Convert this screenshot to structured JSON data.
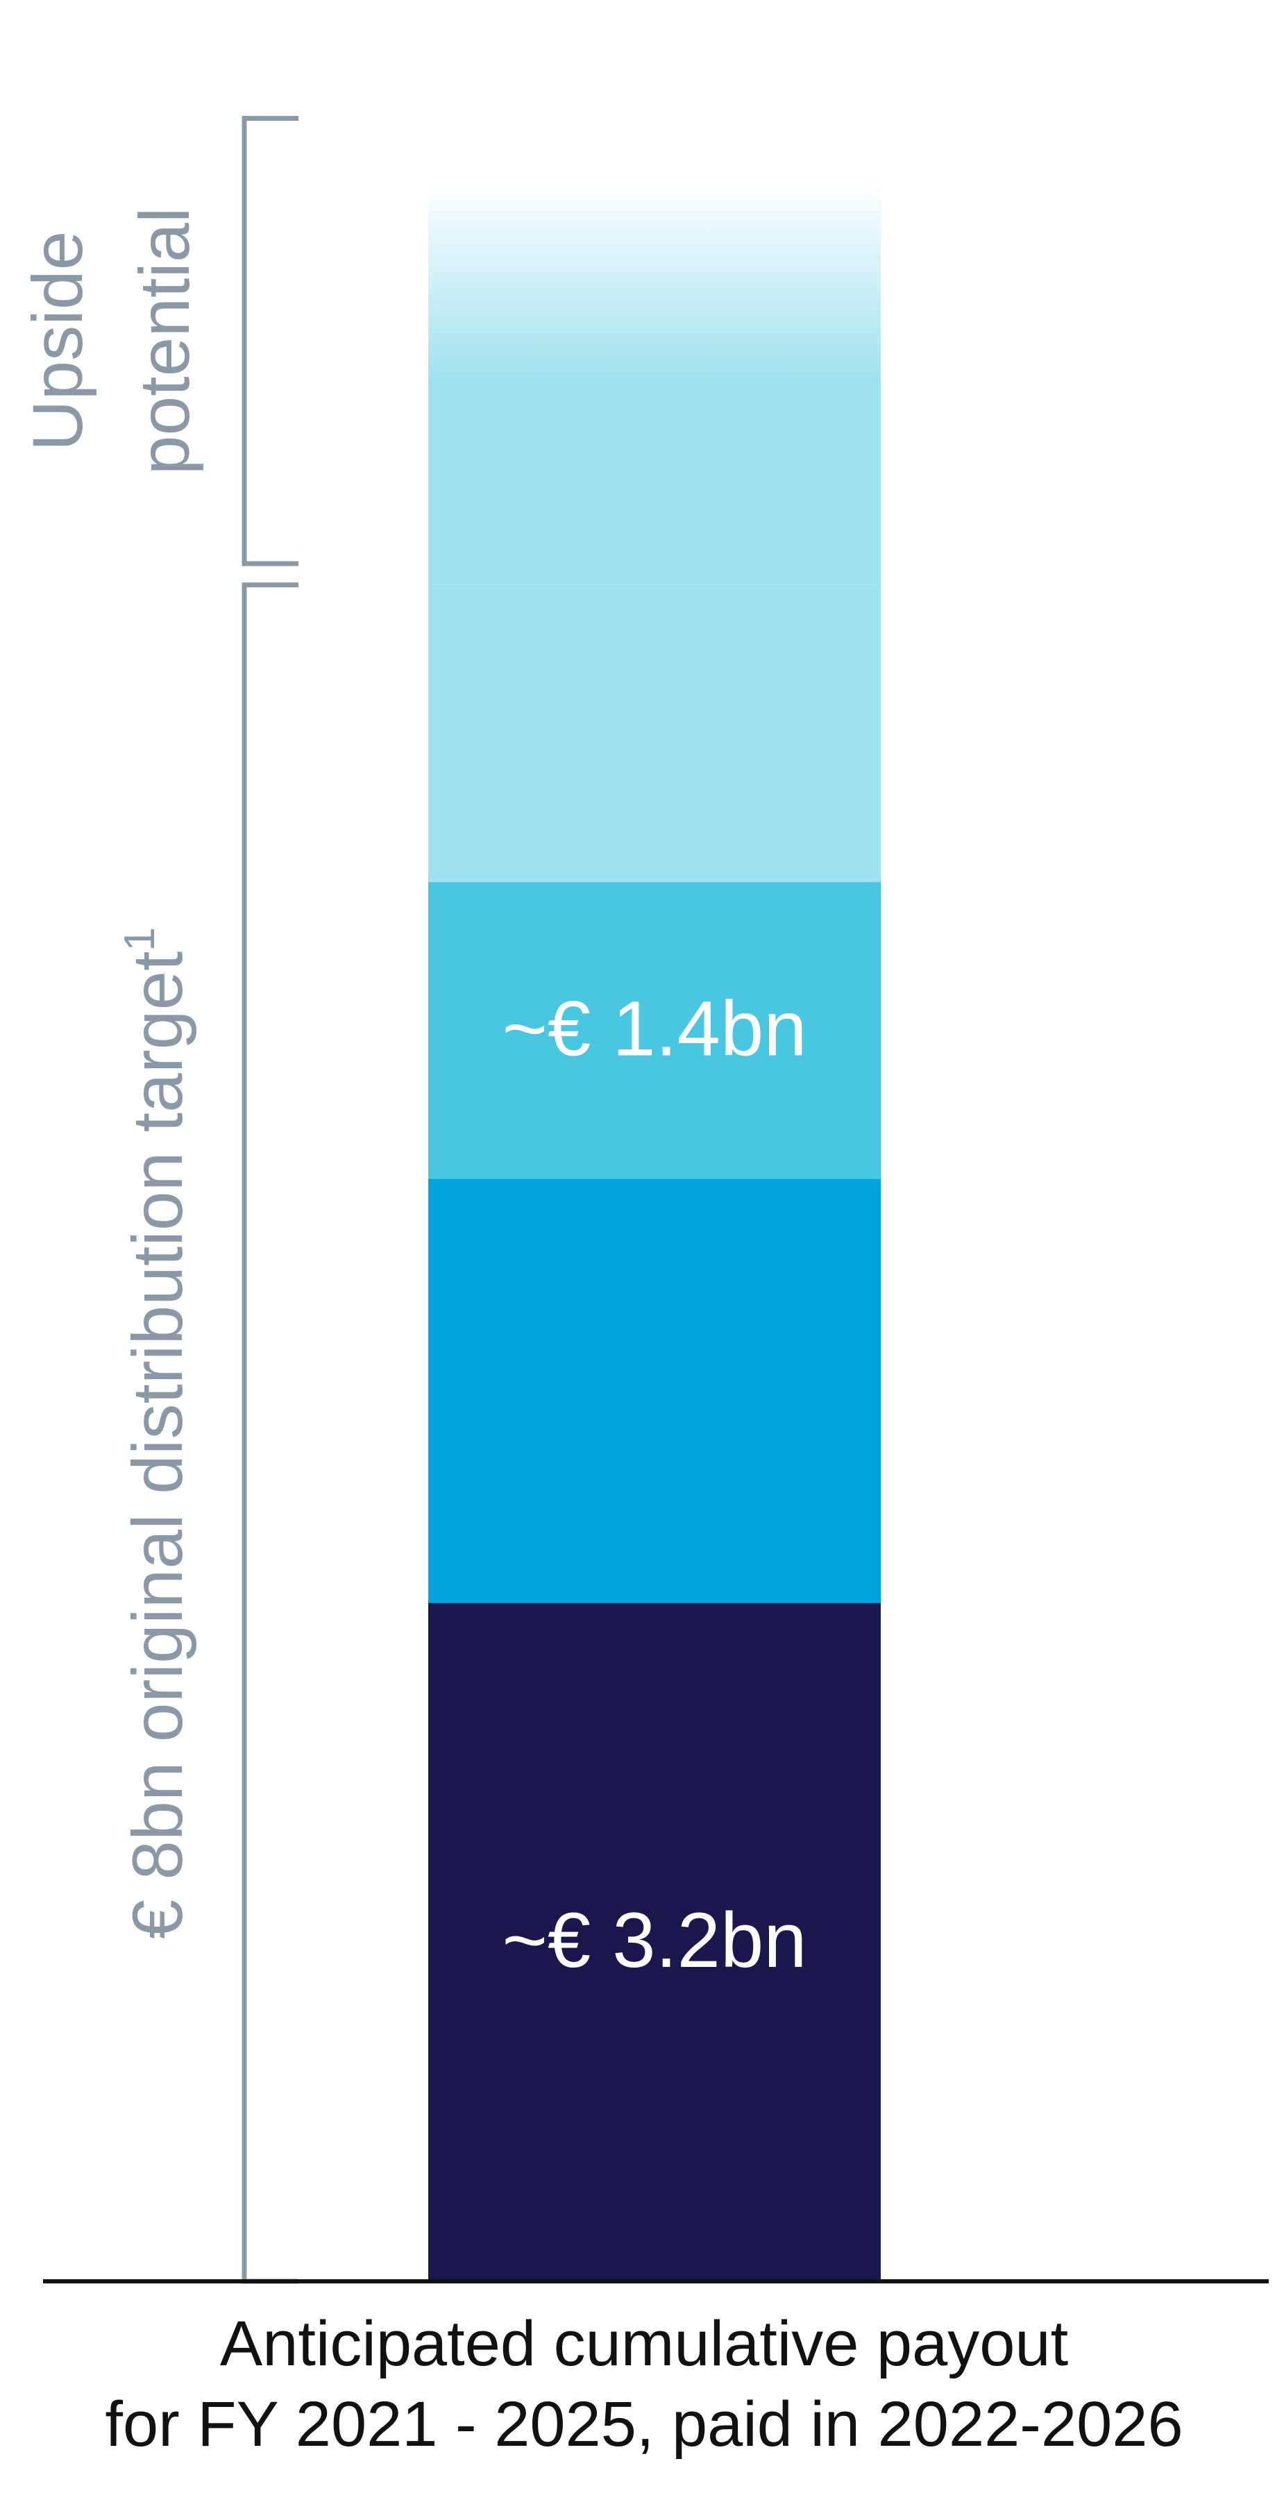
{
  "chart_data": {
    "type": "bar",
    "stacked": true,
    "categories": [
      "Anticipated cumulative payout for FY 2021 - 2025, paid in 2022-2026"
    ],
    "xlabel": "Anticipated cumulative payout for FY 2021 - 2025, paid in 2022-2026",
    "xlabel_lines": [
      "Anticipated cumulative payout",
      "for FY 2021 - 2025, paid in 2022-2026"
    ],
    "ylim": [
      0,
      10.3
    ],
    "series": [
      {
        "values": [
          3.2
        ],
        "color": "#19174c",
        "data_label": "~€ 3.2bn"
      },
      {
        "values": [
          2.0
        ],
        "color": "#02a2de",
        "data_label": ""
      },
      {
        "values": [
          1.4
        ],
        "color": "#4ac7e0",
        "data_label": "~€ 1.4bn"
      },
      {
        "values": [
          1.4
        ],
        "color": "#a0e1ee",
        "data_label": ""
      },
      {
        "values": [
          1.9
        ],
        "color": "#a0e1ee",
        "data_label": "",
        "faded_top": true
      }
    ],
    "annotations": [
      {
        "text": "€ 8bn original distribution target",
        "superscript": "1",
        "range": [
          0,
          8.0
        ]
      },
      {
        "text_lines": [
          "Upside",
          "potential"
        ],
        "range": [
          8.1,
          10.2
        ]
      }
    ],
    "colors": {
      "bracket": "#8b98a6",
      "axis": "#111111",
      "data_label": "#ffffff",
      "xlabel": "#111111"
    }
  }
}
